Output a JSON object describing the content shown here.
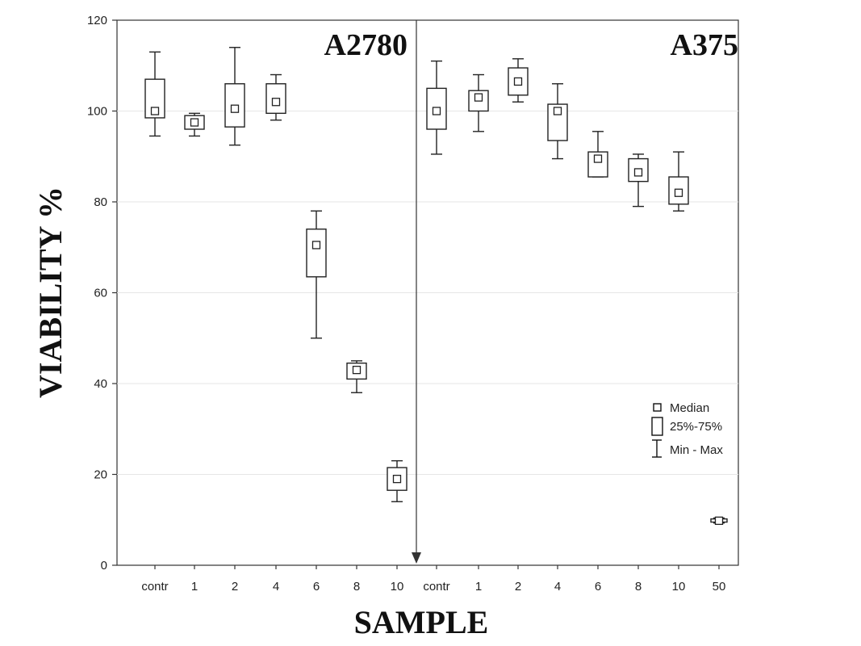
{
  "chart_data": {
    "type": "box",
    "xlabel": "SAMPLE",
    "ylabel": "VIABILITY %",
    "ylim": [
      0,
      120
    ],
    "yticks": [
      0,
      20,
      40,
      60,
      80,
      100,
      120
    ],
    "grid": true,
    "legend": {
      "placement": "right",
      "entries": [
        "Median",
        "25%-75%",
        "Min - Max"
      ]
    },
    "panels": [
      {
        "label": "A2780",
        "categories": [
          "contr",
          "1",
          "2",
          "4",
          "6",
          "8",
          "10"
        ],
        "boxes": [
          {
            "min": 94.5,
            "q1": 98.5,
            "median": 100,
            "q3": 107,
            "max": 113
          },
          {
            "min": 94.5,
            "q1": 96,
            "median": 97.5,
            "q3": 99,
            "max": 99.5
          },
          {
            "min": 92.5,
            "q1": 96.5,
            "median": 100.5,
            "q3": 106,
            "max": 114
          },
          {
            "min": 98,
            "q1": 99.5,
            "median": 102,
            "q3": 106,
            "max": 108
          },
          {
            "min": 50,
            "q1": 63.5,
            "median": 70.5,
            "q3": 74,
            "max": 78
          },
          {
            "min": 38,
            "q1": 41,
            "median": 43,
            "q3": 44.5,
            "max": 45
          },
          {
            "min": 14,
            "q1": 16.5,
            "median": 19,
            "q3": 21.5,
            "max": 23
          }
        ]
      },
      {
        "label": "A375",
        "categories": [
          "contr",
          "1",
          "2",
          "4",
          "6",
          "8",
          "10",
          "50"
        ],
        "boxes": [
          {
            "min": 90.5,
            "q1": 96,
            "median": 100,
            "q3": 105,
            "max": 111
          },
          {
            "min": 95.5,
            "q1": 100,
            "median": 103,
            "q3": 104.5,
            "max": 108
          },
          {
            "min": 102,
            "q1": 103.5,
            "median": 106.5,
            "q3": 109.5,
            "max": 111.5
          },
          {
            "min": 89.5,
            "q1": 93.5,
            "median": 100,
            "q3": 101.5,
            "max": 106
          },
          {
            "min": 85.5,
            "q1": 85.5,
            "median": 89.5,
            "q3": 91,
            "max": 95.5
          },
          {
            "min": 79,
            "q1": 84.5,
            "median": 86.5,
            "q3": 89.5,
            "max": 90.5
          },
          {
            "min": 78,
            "q1": 79.5,
            "median": 82,
            "q3": 85.5,
            "max": 91
          },
          {
            "min": 9.3,
            "q1": 9.5,
            "median": 9.8,
            "q3": 10.2,
            "max": 10.4
          }
        ]
      }
    ]
  }
}
